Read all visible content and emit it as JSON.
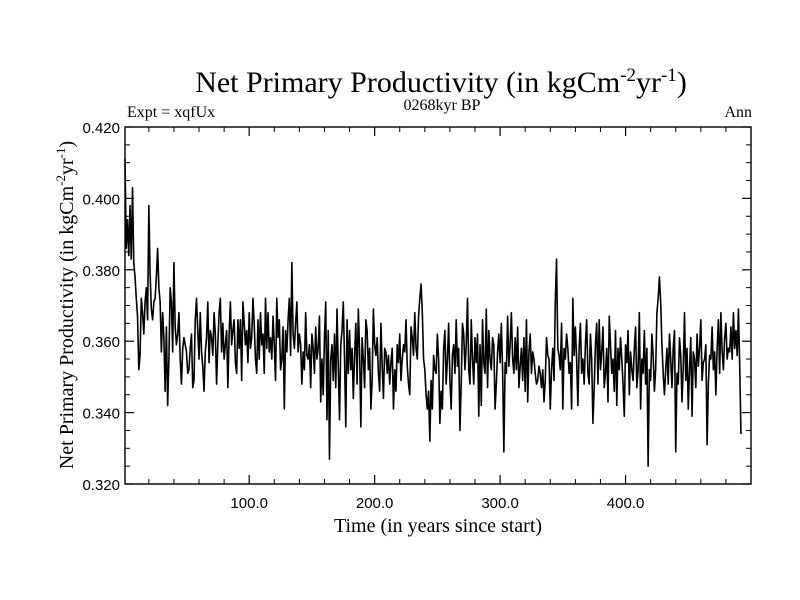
{
  "chart_data": {
    "type": "line",
    "title": "Net Primary Productivity (in kgCm",
    "title_sup1": "-2",
    "title_mid": "yr",
    "title_sup2": "-1",
    "title_end": ")",
    "subtitle_left": "Expt = xqfUx",
    "subtitle_center": "0268kyr BP",
    "subtitle_right": "Ann",
    "xlabel": "Time (in years since start)",
    "ylabel": "Net Primary Productivity (in kgCm",
    "ylabel_sup1": "-2",
    "ylabel_mid": "yr",
    "ylabel_sup2": "-1",
    "ylabel_end": ")",
    "xlim": [
      1,
      500
    ],
    "ylim": [
      0.32,
      0.42
    ],
    "xticks": [
      100,
      200,
      300,
      400
    ],
    "xtick_labels": [
      "100.0",
      "200.0",
      "300.0",
      "400.0"
    ],
    "yticks": [
      0.32,
      0.34,
      0.36,
      0.38,
      0.4,
      0.42
    ],
    "ytick_labels": [
      "0.320",
      "0.340",
      "0.360",
      "0.380",
      "0.400",
      "0.420"
    ],
    "grid": false,
    "series": [
      {
        "name": "Net Primary Productivity",
        "x_start": 1,
        "x_step": 1,
        "values": [
          0.411,
          0.386,
          0.394,
          0.384,
          0.398,
          0.383,
          0.403,
          0.382,
          0.378,
          0.372,
          0.367,
          0.352,
          0.356,
          0.372,
          0.368,
          0.362,
          0.371,
          0.375,
          0.366,
          0.398,
          0.379,
          0.369,
          0.366,
          0.371,
          0.372,
          0.378,
          0.386,
          0.375,
          0.371,
          0.357,
          0.368,
          0.361,
          0.346,
          0.364,
          0.342,
          0.355,
          0.375,
          0.371,
          0.357,
          0.382,
          0.364,
          0.359,
          0.362,
          0.368,
          0.355,
          0.348,
          0.358,
          0.361,
          0.359,
          0.357,
          0.351,
          0.352,
          0.358,
          0.362,
          0.347,
          0.349,
          0.366,
          0.372,
          0.363,
          0.355,
          0.368,
          0.357,
          0.353,
          0.346,
          0.357,
          0.361,
          0.371,
          0.354,
          0.363,
          0.361,
          0.356,
          0.368,
          0.362,
          0.348,
          0.359,
          0.368,
          0.372,
          0.357,
          0.365,
          0.355,
          0.359,
          0.363,
          0.347,
          0.362,
          0.371,
          0.359,
          0.363,
          0.366,
          0.354,
          0.351,
          0.366,
          0.358,
          0.366,
          0.349,
          0.371,
          0.365,
          0.359,
          0.363,
          0.354,
          0.368,
          0.358,
          0.361,
          0.372,
          0.365,
          0.355,
          0.351,
          0.366,
          0.355,
          0.368,
          0.359,
          0.362,
          0.351,
          0.372,
          0.358,
          0.368,
          0.357,
          0.361,
          0.355,
          0.367,
          0.359,
          0.349,
          0.372,
          0.361,
          0.366,
          0.352,
          0.355,
          0.364,
          0.341,
          0.363,
          0.357,
          0.366,
          0.372,
          0.356,
          0.382,
          0.362,
          0.358,
          0.365,
          0.371,
          0.357,
          0.362,
          0.359,
          0.348,
          0.357,
          0.352,
          0.368,
          0.356,
          0.355,
          0.359,
          0.347,
          0.362,
          0.358,
          0.351,
          0.364,
          0.355,
          0.358,
          0.367,
          0.343,
          0.355,
          0.345,
          0.361,
          0.371,
          0.338,
          0.363,
          0.327,
          0.355,
          0.359,
          0.349,
          0.362,
          0.347,
          0.369,
          0.353,
          0.338,
          0.359,
          0.363,
          0.371,
          0.355,
          0.336,
          0.366,
          0.351,
          0.363,
          0.352,
          0.358,
          0.344,
          0.356,
          0.365,
          0.348,
          0.369,
          0.357,
          0.336,
          0.361,
          0.355,
          0.347,
          0.366,
          0.363,
          0.352,
          0.358,
          0.341,
          0.349,
          0.369,
          0.359,
          0.356,
          0.361,
          0.351,
          0.346,
          0.365,
          0.353,
          0.344,
          0.358,
          0.357,
          0.351,
          0.356,
          0.348,
          0.354,
          0.358,
          0.341,
          0.352,
          0.346,
          0.359,
          0.354,
          0.362,
          0.349,
          0.355,
          0.359,
          0.357,
          0.366,
          0.353,
          0.348,
          0.345,
          0.364,
          0.361,
          0.356,
          0.368,
          0.358,
          0.355,
          0.367,
          0.372,
          0.376,
          0.368,
          0.355,
          0.352,
          0.345,
          0.341,
          0.346,
          0.332,
          0.349,
          0.341,
          0.356,
          0.352,
          0.351,
          0.362,
          0.355,
          0.337,
          0.346,
          0.341,
          0.358,
          0.363,
          0.348,
          0.355,
          0.365,
          0.349,
          0.341,
          0.356,
          0.359,
          0.351,
          0.366,
          0.353,
          0.358,
          0.335,
          0.348,
          0.365,
          0.362,
          0.352,
          0.359,
          0.372,
          0.352,
          0.348,
          0.366,
          0.355,
          0.348,
          0.361,
          0.354,
          0.362,
          0.339,
          0.359,
          0.342,
          0.366,
          0.354,
          0.351,
          0.369,
          0.347,
          0.363,
          0.355,
          0.352,
          0.361,
          0.359,
          0.341,
          0.348,
          0.357,
          0.362,
          0.354,
          0.365,
          0.352,
          0.329,
          0.354,
          0.351,
          0.367,
          0.353,
          0.359,
          0.368,
          0.355,
          0.351,
          0.361,
          0.352,
          0.364,
          0.347,
          0.353,
          0.358,
          0.349,
          0.361,
          0.346,
          0.366,
          0.343,
          0.357,
          0.362,
          0.351,
          0.357,
          0.355,
          0.351,
          0.348,
          0.349,
          0.353,
          0.351,
          0.347,
          0.352,
          0.343,
          0.349,
          0.361,
          0.356,
          0.355,
          0.341,
          0.352,
          0.358,
          0.349,
          0.371,
          0.383,
          0.358,
          0.356,
          0.352,
          0.365,
          0.341,
          0.358,
          0.355,
          0.362,
          0.358,
          0.351,
          0.354,
          0.341,
          0.372,
          0.356,
          0.364,
          0.355,
          0.342,
          0.358,
          0.365,
          0.351,
          0.355,
          0.348,
          0.359,
          0.366,
          0.351,
          0.348,
          0.362,
          0.355,
          0.337,
          0.347,
          0.359,
          0.365,
          0.348,
          0.366,
          0.352,
          0.357,
          0.364,
          0.347,
          0.351,
          0.358,
          0.343,
          0.367,
          0.359,
          0.351,
          0.355,
          0.346,
          0.363,
          0.342,
          0.358,
          0.352,
          0.361,
          0.355,
          0.348,
          0.339,
          0.359,
          0.354,
          0.363,
          0.345,
          0.357,
          0.352,
          0.349,
          0.358,
          0.364,
          0.347,
          0.352,
          0.368,
          0.341,
          0.355,
          0.351,
          0.363,
          0.348,
          0.358,
          0.325,
          0.352,
          0.349,
          0.362,
          0.356,
          0.346,
          0.352,
          0.368,
          0.372,
          0.378,
          0.371,
          0.359,
          0.351,
          0.345,
          0.352,
          0.358,
          0.348,
          0.362,
          0.355,
          0.347,
          0.358,
          0.363,
          0.329,
          0.351,
          0.348,
          0.361,
          0.356,
          0.343,
          0.353,
          0.368,
          0.349,
          0.358,
          0.341,
          0.352,
          0.361,
          0.339,
          0.357,
          0.355,
          0.347,
          0.362,
          0.353,
          0.358,
          0.366,
          0.349,
          0.354,
          0.355,
          0.359,
          0.331,
          0.348,
          0.356,
          0.355,
          0.364,
          0.352,
          0.357,
          0.345,
          0.358,
          0.366,
          0.351,
          0.368,
          0.357,
          0.352,
          0.361,
          0.365,
          0.355,
          0.358,
          0.357,
          0.364,
          0.355,
          0.368,
          0.358,
          0.363,
          0.356,
          0.369,
          0.353,
          0.334
        ]
      }
    ]
  }
}
